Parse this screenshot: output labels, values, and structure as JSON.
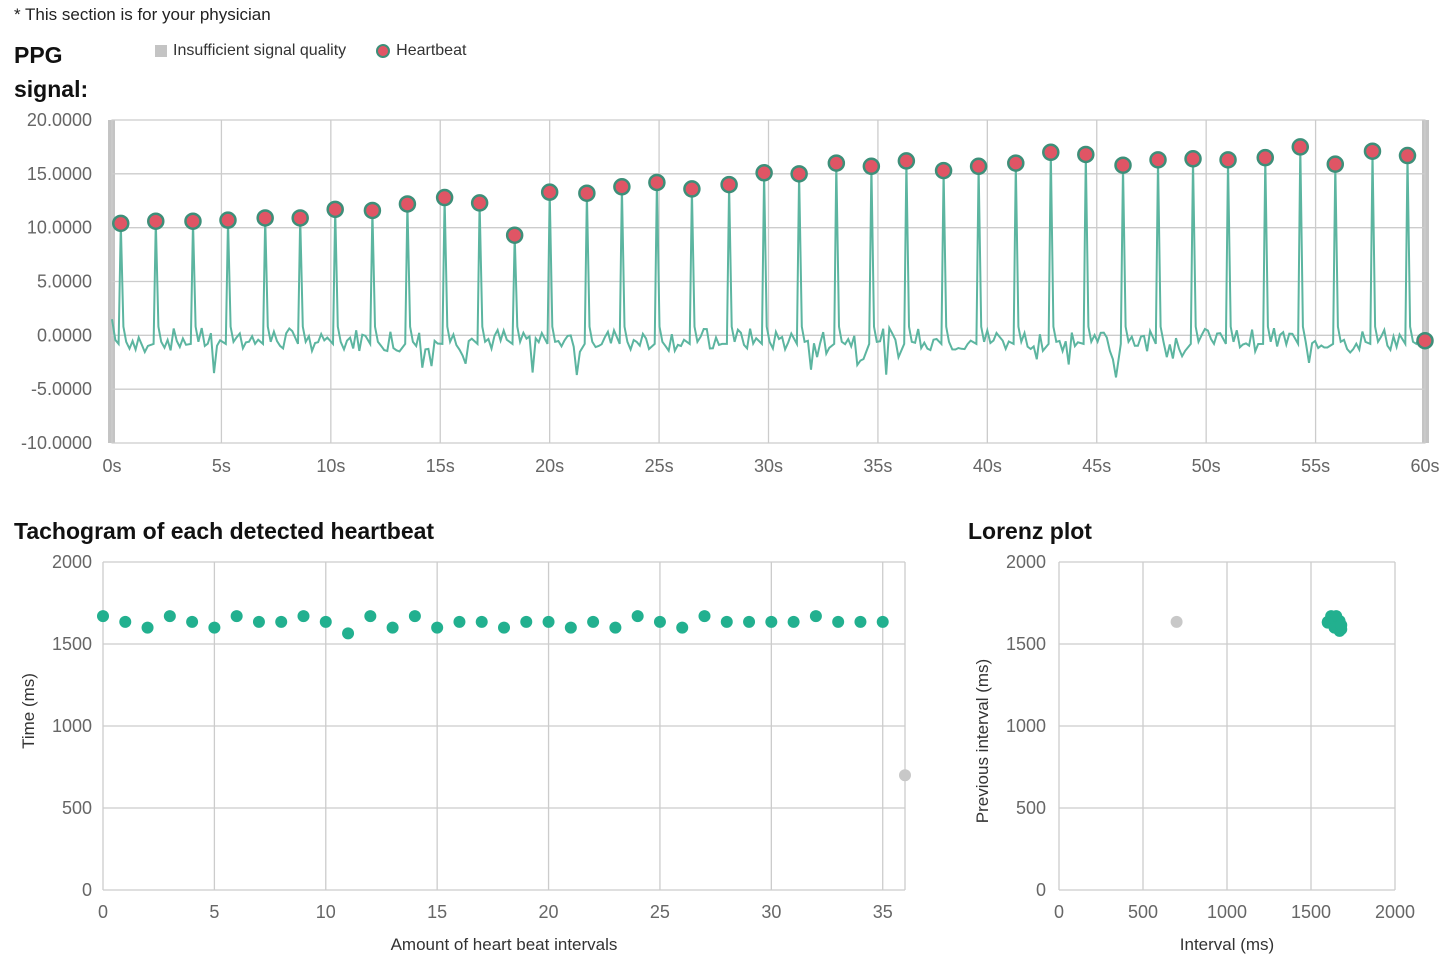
{
  "note": "* This section is for your physician",
  "ppg": {
    "title": "PPG signal:",
    "legend": {
      "insufficient": "Insufficient signal quality",
      "heartbeat": "Heartbeat"
    }
  },
  "tachogram": {
    "title": "Tachogram of each detected heartbeat"
  },
  "lorenz": {
    "title": "Lorenz plot"
  },
  "colors": {
    "signal": "#5cb5a0",
    "heartbeat_fill": "#e05565",
    "heartbeat_stroke": "#3d8f79",
    "dot": "#22b08f",
    "outlier": "#c8c8c8",
    "grid": "#cccccc",
    "insufficient": "#c4c4c4"
  },
  "chart_data": [
    {
      "type": "line",
      "xlim": [
        0,
        60
      ],
      "ylim": [
        -10,
        20
      ],
      "x_tick_labels": [
        "0s",
        "5s",
        "10s",
        "15s",
        "20s",
        "25s",
        "30s",
        "35s",
        "40s",
        "45s",
        "50s",
        "55s",
        "60s"
      ],
      "y_tick_labels": [
        "20.0000",
        "15.0000",
        "10.0000",
        "5.0000",
        "0.0000",
        "-5.0000",
        "-10.0000"
      ],
      "grid": true,
      "heartbeats": {
        "t": [
          0.4,
          2.0,
          3.7,
          5.3,
          7.0,
          8.6,
          10.2,
          11.9,
          13.5,
          15.2,
          16.8,
          18.4,
          20.0,
          21.7,
          23.3,
          24.9,
          26.5,
          28.2,
          29.8,
          31.4,
          33.1,
          34.7,
          36.3,
          38.0,
          39.6,
          41.3,
          42.9,
          44.5,
          46.2,
          47.8,
          49.4,
          51.0,
          52.7,
          54.3,
          55.9,
          57.6,
          59.2,
          60.0
        ],
        "value": [
          10.4,
          10.6,
          10.6,
          10.7,
          10.9,
          10.9,
          11.7,
          11.6,
          12.2,
          12.8,
          12.3,
          9.3,
          13.3,
          13.2,
          13.8,
          14.2,
          13.6,
          14.0,
          15.1,
          15.0,
          16.0,
          15.7,
          16.2,
          15.3,
          15.7,
          16.0,
          17.0,
          16.8,
          15.8,
          16.3,
          16.4,
          16.3,
          16.5,
          17.5,
          15.9,
          17.1,
          16.7,
          -0.5
        ]
      },
      "insufficient_signal_t": [
        0,
        60
      ]
    },
    {
      "type": "scatter",
      "xlabel": "Amount of heart beat intervals",
      "ylabel": "Time (ms)",
      "xlim": [
        0,
        36
      ],
      "ylim": [
        0,
        2000
      ],
      "x_tick_labels": [
        "0",
        "5",
        "10",
        "15",
        "20",
        "25",
        "30",
        "35"
      ],
      "y_tick_labels": [
        "2000",
        "1500",
        "1000",
        "500",
        "0"
      ],
      "grid": true,
      "x": [
        0,
        1,
        2,
        3,
        4,
        5,
        6,
        7,
        8,
        9,
        10,
        11,
        12,
        13,
        14,
        15,
        16,
        17,
        18,
        19,
        20,
        21,
        22,
        23,
        24,
        25,
        26,
        27,
        28,
        29,
        30,
        31,
        32,
        33,
        34,
        35,
        36
      ],
      "y": [
        1670,
        1635,
        1600,
        1670,
        1635,
        1600,
        1670,
        1635,
        1635,
        1670,
        1635,
        1565,
        1670,
        1600,
        1670,
        1600,
        1635,
        1635,
        1600,
        1635,
        1635,
        1600,
        1635,
        1600,
        1670,
        1635,
        1600,
        1670,
        1635,
        1635,
        1635,
        1635,
        1670,
        1635,
        1635,
        1635,
        700
      ],
      "outlier_index": [
        36
      ]
    },
    {
      "type": "scatter",
      "xlabel": "Interval (ms)",
      "ylabel": "Previous interval (ms)",
      "xlim": [
        0,
        2000
      ],
      "ylim": [
        0,
        2000
      ],
      "x_tick_labels": [
        "0",
        "500",
        "1000",
        "1500",
        "2000"
      ],
      "y_tick_labels": [
        "2000",
        "1500",
        "1000",
        "500",
        "0"
      ],
      "grid": true,
      "x": [
        700,
        1600,
        1620,
        1635,
        1650,
        1635,
        1660,
        1670,
        1620,
        1650,
        1665,
        1600,
        1640,
        1670,
        1655,
        1680,
        1680
      ],
      "y": [
        1635,
        1635,
        1640,
        1660,
        1650,
        1620,
        1630,
        1640,
        1670,
        1670,
        1610,
        1630,
        1600,
        1580,
        1600,
        1590,
        1615
      ],
      "outlier_index": [
        0
      ]
    }
  ]
}
